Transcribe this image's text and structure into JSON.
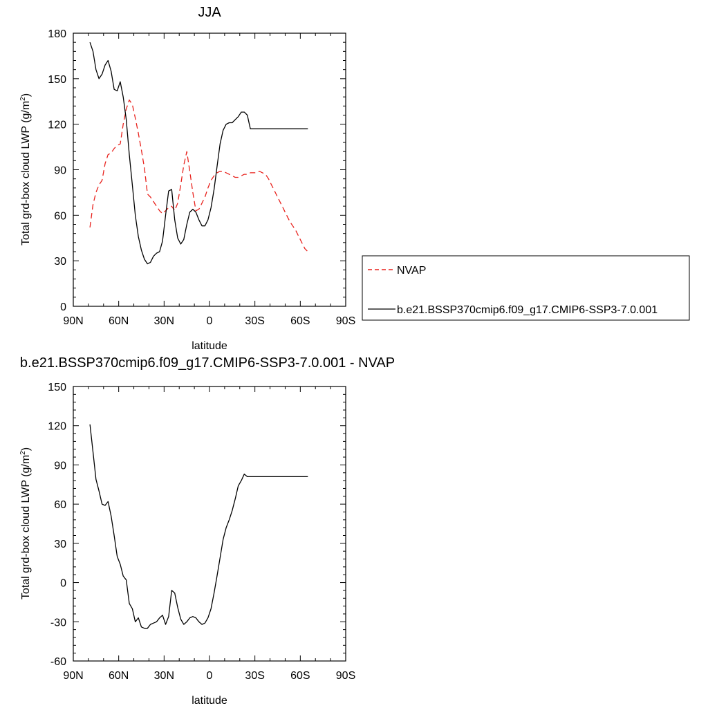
{
  "chart_data": [
    {
      "type": "line",
      "title": "JJA",
      "xlabel": "latitude",
      "ylabel_main": "Total grd-box cloud LWP (g/m",
      "ylabel_sup": "2",
      "ylabel_close": ")",
      "xlim": [
        90,
        -90
      ],
      "ylim": [
        0,
        180
      ],
      "x_ticks": [
        90,
        60,
        30,
        0,
        -30,
        -60,
        -90
      ],
      "x_tick_labels": [
        "90N",
        "60N",
        "30N",
        "0",
        "30S",
        "60S",
        "90S"
      ],
      "y_ticks": [
        0,
        30,
        60,
        90,
        120,
        150,
        180
      ],
      "y_tick_labels": [
        "0",
        "30",
        "60",
        "90",
        "120",
        "150",
        "180"
      ],
      "legend_placement": "right",
      "series": [
        {
          "name": "NVAP",
          "color": "#e8211c",
          "dash": "dashed",
          "x": [
            79,
            77,
            75,
            73,
            71,
            69,
            67,
            65,
            63,
            61,
            59,
            57,
            55,
            53,
            51,
            49,
            47,
            45,
            43,
            41,
            39,
            37,
            35,
            33,
            31,
            29,
            27,
            25,
            23,
            21,
            19,
            17,
            15,
            13,
            11,
            9,
            7,
            5,
            3,
            1,
            -1,
            -3,
            -5,
            -7,
            -9,
            -11,
            -13,
            -15,
            -17,
            -19,
            -21,
            -23,
            -25,
            -27,
            -29,
            -31,
            -33,
            -35,
            -37,
            -39,
            -41,
            -43,
            -45,
            -47,
            -49,
            -51,
            -53,
            -55,
            -57,
            -59,
            -61,
            -63,
            -65
          ],
          "y": [
            52,
            67,
            75,
            80,
            83,
            94,
            100,
            101,
            104,
            106,
            107,
            120,
            130,
            136,
            133,
            124,
            114,
            103,
            91,
            74,
            72,
            69,
            66,
            63,
            61,
            63,
            65,
            66,
            63,
            68,
            80,
            93,
            102,
            89,
            75,
            63,
            64,
            68,
            72,
            78,
            83,
            86,
            88,
            89,
            89,
            88,
            87,
            86,
            85,
            85,
            86,
            87,
            87,
            88,
            88,
            88,
            89,
            88,
            87,
            84,
            80,
            76,
            72,
            68,
            64,
            60,
            56,
            53,
            50,
            46,
            42,
            38,
            36
          ]
        },
        {
          "name": "b.e21.BSSP370cmip6.f09_g17.CMIP6-SSP3-7.0.001",
          "color": "#000000",
          "dash": "solid",
          "x": [
            79,
            77,
            75,
            73,
            71,
            69,
            67,
            65,
            63,
            61,
            59,
            57,
            55,
            53,
            51,
            49,
            47,
            45,
            43,
            41,
            39,
            37,
            35,
            33,
            31,
            29,
            27,
            25,
            23,
            21,
            19,
            17,
            15,
            13,
            11,
            9,
            7,
            5,
            3,
            1,
            -1,
            -3,
            -5,
            -7,
            -9,
            -11,
            -13,
            -15,
            -17,
            -19,
            -21,
            -23,
            -25,
            -27,
            -29,
            -31,
            -33,
            -35,
            -37,
            -39,
            -41,
            -43,
            -45,
            -47,
            -49,
            -51,
            -53,
            -55,
            -57,
            -59,
            -61,
            -63,
            -65
          ],
          "y": [
            174,
            168,
            156,
            150,
            153,
            159,
            162,
            155,
            143,
            142,
            148,
            138,
            123,
            100,
            80,
            60,
            46,
            37,
            31,
            28,
            29,
            33,
            35,
            36,
            43,
            60,
            76,
            77,
            57,
            45,
            41,
            44,
            54,
            62,
            64,
            62,
            57,
            53,
            53,
            57,
            65,
            77,
            92,
            107,
            116,
            120,
            121,
            121,
            123,
            125,
            128,
            128,
            126,
            117,
            117,
            117,
            117,
            117,
            117,
            117,
            117,
            117,
            117,
            117,
            117,
            117,
            117,
            117,
            117,
            117,
            117,
            117,
            117
          ]
        }
      ]
    },
    {
      "type": "line",
      "title": "b.e21.BSSP370cmip6.f09_g17.CMIP6-SSP3-7.0.001 - NVAP",
      "xlabel": "latitude",
      "ylabel_main": "Total grd-box cloud LWP (g/m",
      "ylabel_sup": "2",
      "ylabel_close": ")",
      "xlim": [
        90,
        -90
      ],
      "ylim": [
        -60,
        150
      ],
      "x_ticks": [
        90,
        60,
        30,
        0,
        -30,
        -60,
        -90
      ],
      "x_tick_labels": [
        "90N",
        "60N",
        "30N",
        "0",
        "30S",
        "60S",
        "90S"
      ],
      "y_ticks": [
        -60,
        -30,
        0,
        30,
        60,
        90,
        120,
        150
      ],
      "y_tick_labels": [
        "-60",
        "-30",
        "0",
        "30",
        "60",
        "90",
        "120",
        "150"
      ],
      "series": [
        {
          "color": "#000000",
          "dash": "solid",
          "x": [
            79,
            77,
            75,
            73,
            71,
            69,
            67,
            65,
            63,
            61,
            59,
            57,
            55,
            53,
            51,
            49,
            47,
            45,
            43,
            41,
            39,
            37,
            35,
            33,
            31,
            29,
            27,
            25,
            23,
            21,
            19,
            17,
            15,
            13,
            11,
            9,
            7,
            5,
            3,
            1,
            -1,
            -3,
            -5,
            -7,
            -9,
            -11,
            -13,
            -15,
            -17,
            -19,
            -21,
            -23,
            -25,
            -27,
            -29,
            -31,
            -33,
            -35,
            -37,
            -39,
            -41,
            -43,
            -45,
            -47,
            -49,
            -51,
            -53,
            -55,
            -57,
            -59,
            -61,
            -63,
            -65
          ],
          "y": [
            121,
            100,
            79,
            70,
            60,
            59,
            62,
            51,
            36,
            20,
            14,
            5,
            2,
            -16,
            -20,
            -30,
            -27,
            -34,
            -35,
            -35,
            -32,
            -31,
            -30,
            -27,
            -25,
            -32,
            -26,
            -6,
            -8,
            -19,
            -28,
            -32,
            -30,
            -27,
            -26,
            -27,
            -30,
            -32,
            -31,
            -27,
            -20,
            -8,
            5,
            19,
            33,
            42,
            48,
            55,
            64,
            74,
            78,
            83,
            81,
            81,
            81,
            81,
            81,
            81,
            81,
            81,
            81,
            81,
            81,
            81,
            81,
            81,
            81,
            81,
            81,
            81,
            81,
            81,
            81
          ]
        }
      ]
    }
  ]
}
